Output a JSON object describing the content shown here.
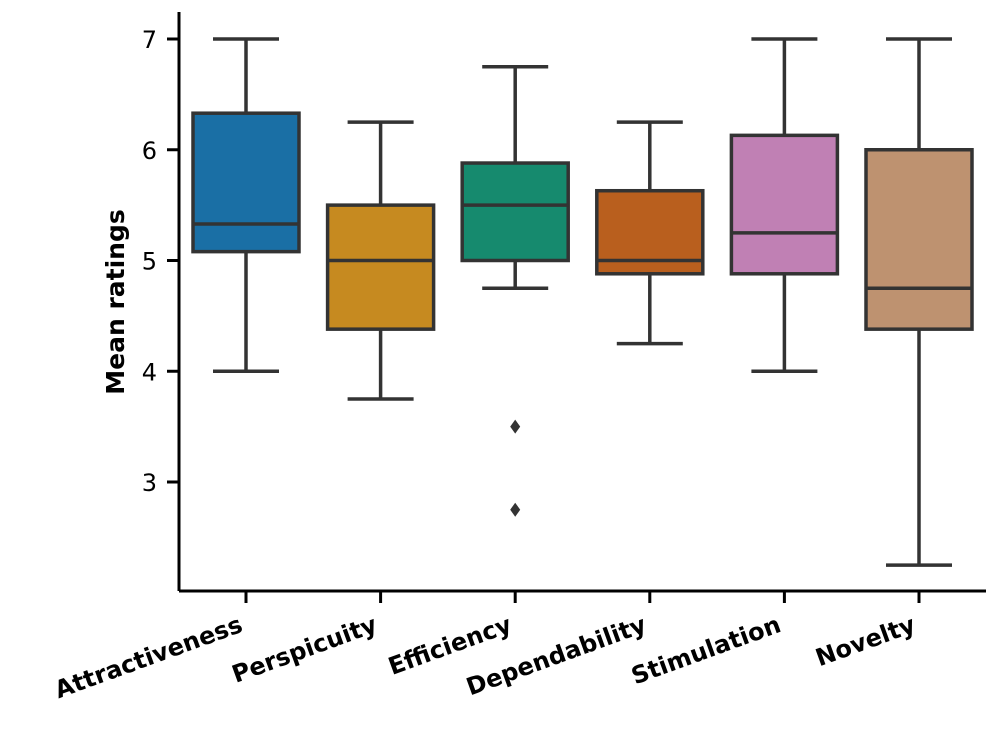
{
  "chart_data": {
    "type": "box",
    "title": "",
    "xlabel": "",
    "ylabel": "Mean ratings",
    "ylim": [
      2.0,
      7.25
    ],
    "yticks": [
      3,
      4,
      5,
      6,
      7
    ],
    "categories": [
      "Attractiveness",
      "Perspicuity",
      "Efficiency",
      "Dependability",
      "Stimulation",
      "Novelty"
    ],
    "colors": [
      "#1a6fa5",
      "#c68a20",
      "#168a6e",
      "#b95f1e",
      "#c080b4",
      "#be9270"
    ],
    "boxes": [
      {
        "name": "Attractiveness",
        "whisker_low": 4.0,
        "q1": 5.08,
        "median": 5.33,
        "q3": 6.33,
        "whisker_high": 7.0,
        "outliers": []
      },
      {
        "name": "Perspicuity",
        "whisker_low": 3.75,
        "q1": 4.38,
        "median": 5.0,
        "q3": 5.5,
        "whisker_high": 6.25,
        "outliers": []
      },
      {
        "name": "Efficiency",
        "whisker_low": 4.75,
        "q1": 5.0,
        "median": 5.5,
        "q3": 5.88,
        "whisker_high": 6.75,
        "outliers": [
          3.5,
          2.75
        ]
      },
      {
        "name": "Dependability",
        "whisker_low": 4.25,
        "q1": 4.88,
        "median": 5.0,
        "q3": 5.63,
        "whisker_high": 6.25,
        "outliers": []
      },
      {
        "name": "Stimulation",
        "whisker_low": 4.0,
        "q1": 4.88,
        "median": 5.25,
        "q3": 6.13,
        "whisker_high": 7.0,
        "outliers": []
      },
      {
        "name": "Novelty",
        "whisker_low": 2.25,
        "q1": 4.38,
        "median": 4.75,
        "q3": 6.0,
        "whisker_high": 7.0,
        "outliers": []
      }
    ]
  }
}
